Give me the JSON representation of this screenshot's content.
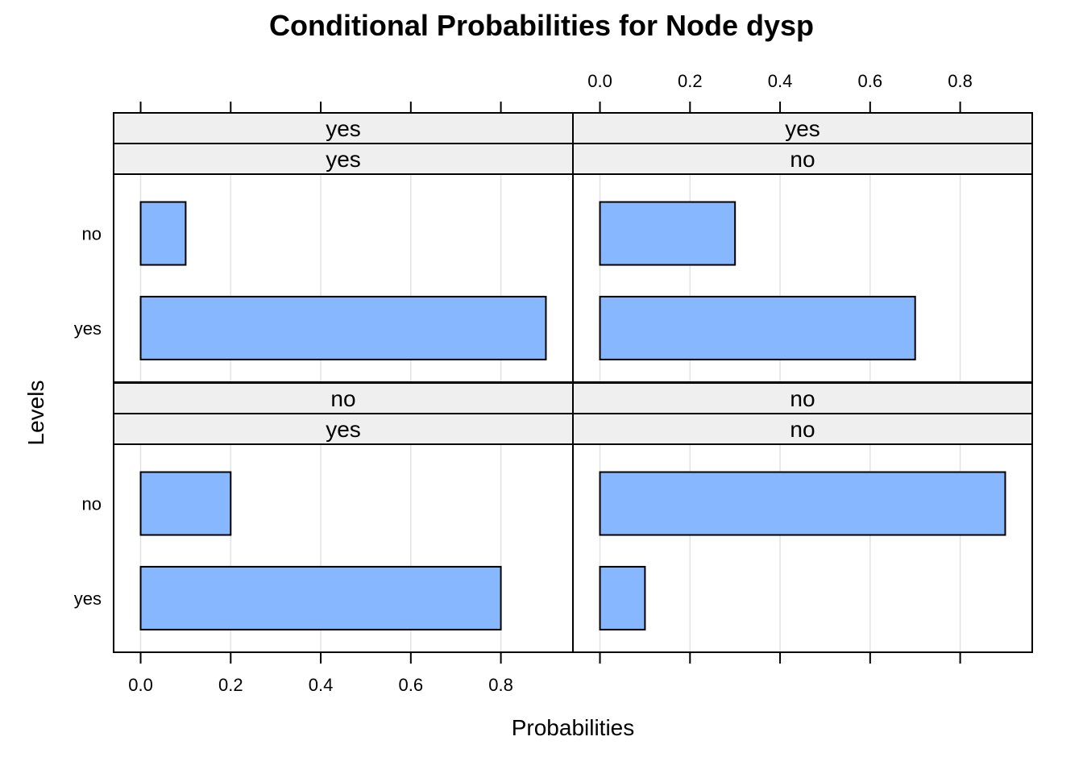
{
  "chart_data": {
    "type": "bar",
    "orientation": "horizontal",
    "title": "Conditional Probabilities for Node dysp",
    "xlabel": "Probabilities",
    "ylabel": "Levels",
    "xlim": [
      -0.06,
      0.96
    ],
    "xticks": [
      0.0,
      0.2,
      0.4,
      0.6,
      0.8
    ],
    "xtick_labels": [
      "0.0",
      "0.2",
      "0.4",
      "0.6",
      "0.8"
    ],
    "levels": [
      "no",
      "yes"
    ],
    "bar_color": "#87B7FF",
    "strip_color": "#EFEFEF",
    "grid_color": "#E2E2E2",
    "grid": true,
    "panels": [
      {
        "strips": [
          "yes",
          "yes"
        ],
        "values": {
          "no": 0.1,
          "yes": 0.9
        }
      },
      {
        "strips": [
          "yes",
          "no"
        ],
        "values": {
          "no": 0.3,
          "yes": 0.7
        }
      },
      {
        "strips": [
          "no",
          "yes"
        ],
        "values": {
          "no": 0.2,
          "yes": 0.8
        }
      },
      {
        "strips": [
          "no",
          "no"
        ],
        "values": {
          "no": 0.9,
          "yes": 0.1
        }
      }
    ]
  }
}
